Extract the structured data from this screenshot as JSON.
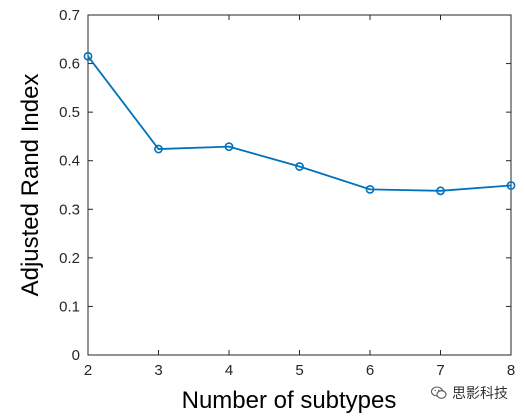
{
  "chart_data": {
    "type": "line",
    "x": [
      2,
      3,
      4,
      5,
      6,
      7,
      8
    ],
    "series": [
      {
        "values": [
          0.615,
          0.424,
          0.429,
          0.388,
          0.341,
          0.338,
          0.349
        ],
        "color": "#0072BD",
        "marker": "circle"
      }
    ],
    "xlabel": "Number of subtypes",
    "ylabel": "Adjusted Rand Index",
    "xlim": [
      2,
      8
    ],
    "ylim": [
      0,
      0.7
    ],
    "xticks": [
      "2",
      "3",
      "4",
      "5",
      "6",
      "7",
      "8"
    ],
    "yticks": [
      "0",
      "0.1",
      "0.2",
      "0.3",
      "0.4",
      "0.5",
      "0.6",
      "0.7"
    ],
    "grid": false,
    "box": true
  },
  "watermark": {
    "text": "思影科技",
    "icon": "wechat-icon"
  }
}
